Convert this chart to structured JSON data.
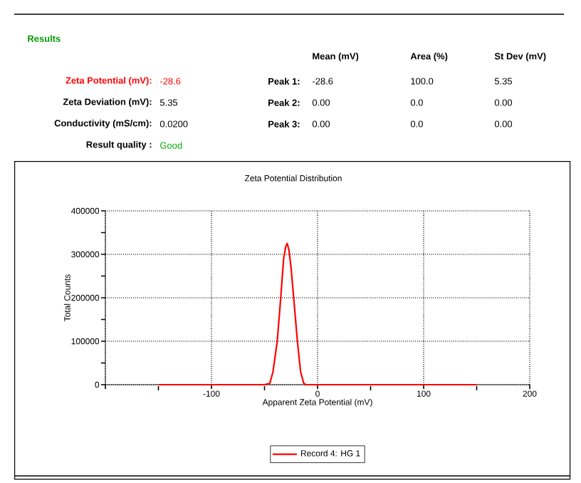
{
  "chart_data": {
    "type": "line",
    "title": "Zeta Potential Distribution",
    "xlabel": "Apparent Zeta Potential (mV)",
    "ylabel": "Total Counts",
    "xlim": [
      -200,
      200
    ],
    "ylim": [
      0,
      400000
    ],
    "xticks": [
      {
        "value": -200,
        "label": null
      },
      -100,
      0,
      100,
      200
    ],
    "yticks": [
      0,
      100000,
      200000,
      300000,
      400000
    ],
    "grid": true,
    "legend": "bottom",
    "marker": "none",
    "line_style": "solid",
    "series": [
      {
        "name": "Record 4: HG 1",
        "color": "#ff0000",
        "x": [
          -150,
          -50,
          -45,
          -42,
          -38,
          -34.7,
          -32,
          -30,
          -28.6,
          -27,
          -25,
          -22.5,
          -19,
          -16,
          -13,
          -11,
          150
        ],
        "values": [
          0,
          0,
          3000,
          30000,
          100000,
          200000,
          290000,
          318000,
          325000,
          310000,
          270000,
          200000,
          100000,
          30000,
          3000,
          0,
          0
        ]
      }
    ],
    "annotations": [
      "Results",
      "Mean (mV)",
      "Area (%)",
      "St Dev (mV)",
      "Zeta Potential (mV):",
      "-28.6",
      "Peak 1:",
      "-28.6",
      "100.0",
      "5.35",
      "Zeta Deviation (mV):",
      "5.35",
      "Peak 2:",
      "0.00",
      "0.0",
      "0.00",
      "Conductivity (mS/cm):",
      "0.0200",
      "Peak 3:",
      "0.00",
      "0.0",
      "0.00",
      "Result quality :",
      "Good"
    ]
  }
}
